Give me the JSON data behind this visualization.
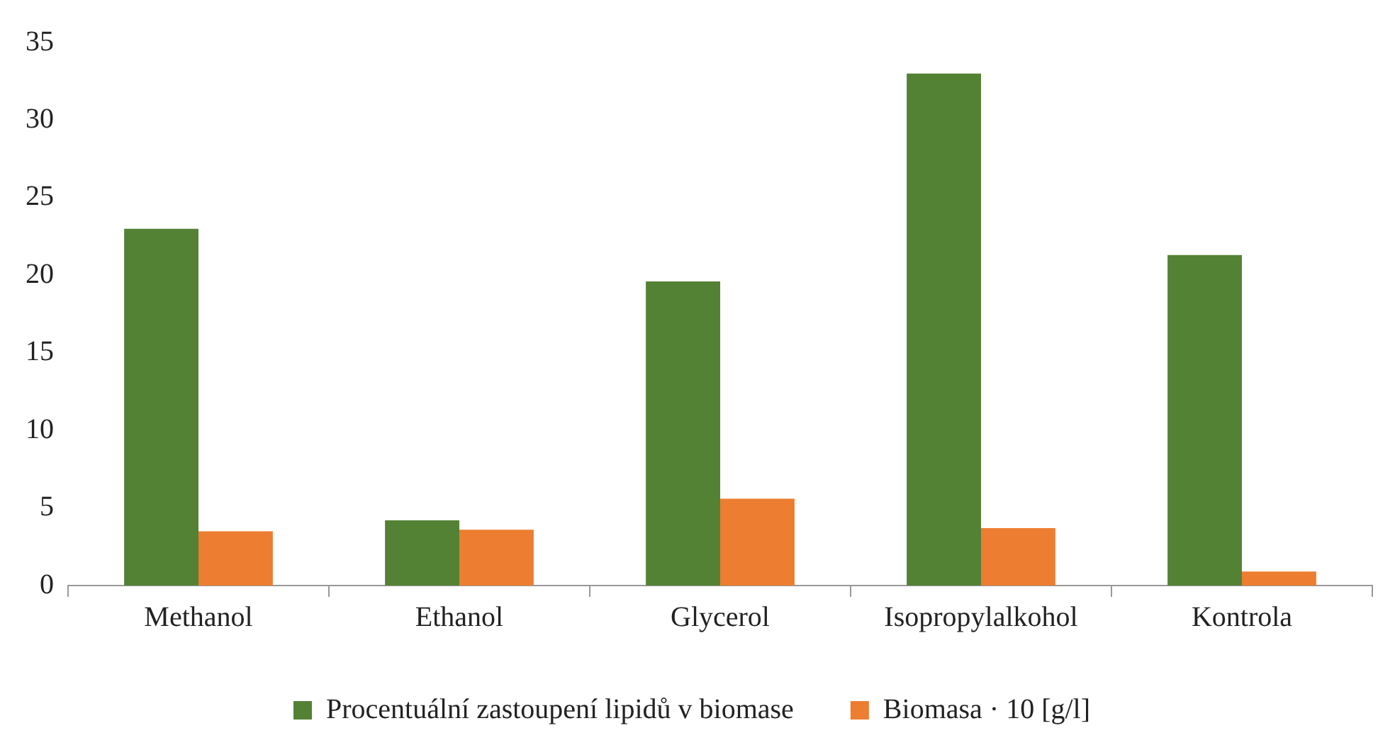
{
  "chart_data": {
    "type": "bar",
    "categories": [
      "Methanol",
      "Ethanol",
      "Glycerol",
      "Isopropylalkohol",
      "Kontrola"
    ],
    "series": [
      {
        "name": "Procentuální zastoupení lipidů v biomase",
        "color": "#548235",
        "values": [
          23.0,
          4.2,
          19.6,
          33.0,
          21.3
        ]
      },
      {
        "name": "Biomasa · 10 [g/l]",
        "color": "#ed7d31",
        "values": [
          3.5,
          3.6,
          5.6,
          3.7,
          0.9
        ]
      }
    ],
    "ylim": [
      0,
      35
    ],
    "yticks": [
      0,
      5,
      10,
      15,
      20,
      25,
      30,
      35
    ],
    "grid": false,
    "legend": "bottom"
  }
}
